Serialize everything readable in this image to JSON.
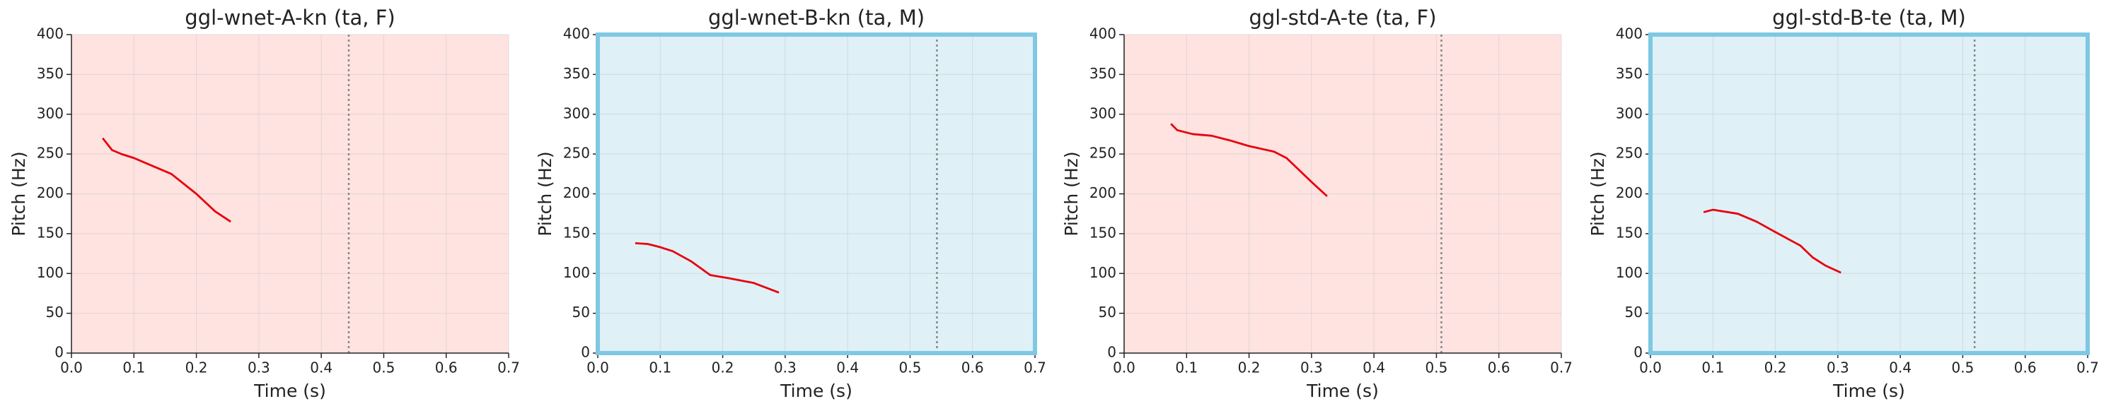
{
  "chart_data": [
    {
      "type": "line",
      "title": "ggl-wnet-A-kn (ta, F)",
      "xlabel": "Time (s)",
      "ylabel": "Pitch (Hz)",
      "x": [
        0.05,
        0.065,
        0.08,
        0.1,
        0.13,
        0.16,
        0.2,
        0.23,
        0.255
      ],
      "values": [
        270,
        255,
        250,
        245,
        235,
        225,
        200,
        178,
        165
      ],
      "color": "#e8000b",
      "xlim": [
        0,
        0.7
      ],
      "ylim": [
        0,
        400
      ],
      "xticks": [
        {
          "value": 0,
          "label": "0.0"
        },
        0.1,
        0.2,
        0.3,
        0.4,
        0.5,
        0.6,
        0.7
      ],
      "yticks": [
        0,
        50,
        100,
        150,
        200,
        250,
        300,
        350,
        400
      ],
      "grid": true,
      "background": "#ffe3e1",
      "vline": 0.444,
      "vline_color": "#888888"
    },
    {
      "type": "line",
      "title": "ggl-wnet-B-kn (ta, M)",
      "xlabel": "Time (s)",
      "ylabel": "Pitch (Hz)",
      "x": [
        0.06,
        0.08,
        0.1,
        0.12,
        0.15,
        0.18,
        0.21,
        0.25,
        0.27,
        0.29
      ],
      "values": [
        138,
        137,
        133,
        128,
        115,
        98,
        94,
        88,
        82,
        76
      ],
      "color": "#e8000b",
      "xlim": [
        0,
        0.7
      ],
      "ylim": [
        0,
        400
      ],
      "xticks": [
        {
          "value": 0,
          "label": "0.0"
        },
        0.1,
        0.2,
        0.3,
        0.4,
        0.5,
        0.6,
        0.7
      ],
      "yticks": [
        0,
        50,
        100,
        150,
        200,
        250,
        300,
        350,
        400
      ],
      "grid": true,
      "background": "#dff0f7",
      "frame_color": "#7ec8e3",
      "vline": 0.543,
      "vline_color": "#888888"
    },
    {
      "type": "line",
      "title": "ggl-std-A-te (ta, F)",
      "xlabel": "Time (s)",
      "ylabel": "Pitch (Hz)",
      "x": [
        0.075,
        0.085,
        0.11,
        0.14,
        0.17,
        0.2,
        0.24,
        0.26,
        0.28,
        0.3,
        0.325
      ],
      "values": [
        288,
        280,
        275,
        273,
        267,
        260,
        253,
        245,
        230,
        215,
        197
      ],
      "color": "#e8000b",
      "xlim": [
        0,
        0.7
      ],
      "ylim": [
        0,
        400
      ],
      "xticks": [
        {
          "value": 0,
          "label": "0.0"
        },
        0.1,
        0.2,
        0.3,
        0.4,
        0.5,
        0.6,
        0.7
      ],
      "yticks": [
        0,
        50,
        100,
        150,
        200,
        250,
        300,
        350,
        400
      ],
      "grid": true,
      "background": "#ffe3e1",
      "vline": 0.508,
      "vline_color": "#888888"
    },
    {
      "type": "line",
      "title": "ggl-std-B-te (ta, M)",
      "xlabel": "Time (s)",
      "ylabel": "Pitch (Hz)",
      "x": [
        0.085,
        0.1,
        0.14,
        0.17,
        0.2,
        0.24,
        0.26,
        0.28,
        0.305
      ],
      "values": [
        177,
        180,
        175,
        165,
        152,
        135,
        120,
        110,
        101
      ],
      "color": "#e8000b",
      "xlim": [
        0,
        0.7
      ],
      "ylim": [
        0,
        400
      ],
      "xticks": [
        {
          "value": 0,
          "label": "0.0"
        },
        0.1,
        0.2,
        0.3,
        0.4,
        0.5,
        0.6,
        0.7
      ],
      "yticks": [
        0,
        50,
        100,
        150,
        200,
        250,
        300,
        350,
        400
      ],
      "grid": true,
      "background": "#dff0f7",
      "frame_color": "#7ec8e3",
      "vline": 0.519,
      "vline_color": "#888888"
    }
  ]
}
